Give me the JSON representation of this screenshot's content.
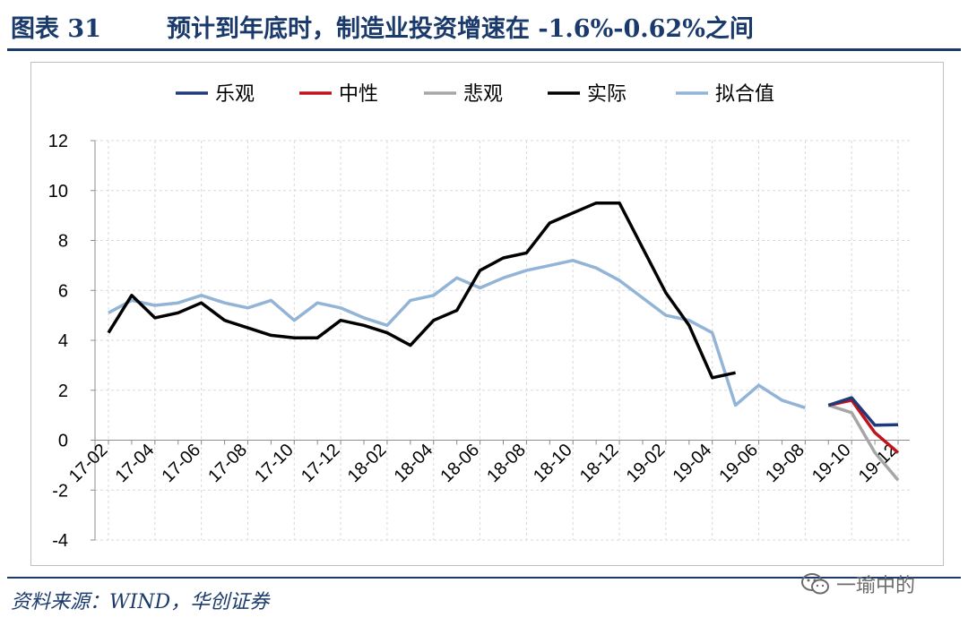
{
  "header": {
    "figure_label": "图表 31",
    "title": "预计到年底时，制造业投资增速在 -1.6%-0.62%之间"
  },
  "source": "资料来源：WIND，华创证券",
  "watermark": {
    "icon": "wechat-icon",
    "text": "一瑜中的"
  },
  "chart_data": {
    "type": "line",
    "title": "",
    "xlabel": "",
    "ylabel": "",
    "ylim": [
      -4,
      12
    ],
    "yticks": [
      -4,
      -2,
      0,
      2,
      4,
      6,
      8,
      10,
      12
    ],
    "x": [
      "17-02",
      "17-03",
      "17-04",
      "17-05",
      "17-06",
      "17-07",
      "17-08",
      "17-09",
      "17-10",
      "17-11",
      "17-12",
      "18-01",
      "18-02",
      "18-03",
      "18-04",
      "18-05",
      "18-06",
      "18-07",
      "18-08",
      "18-09",
      "18-10",
      "18-11",
      "18-12",
      "19-01",
      "19-02",
      "19-03",
      "19-04",
      "19-05",
      "19-06",
      "19-07",
      "19-08",
      "19-09",
      "19-10",
      "19-11",
      "19-12"
    ],
    "xtick_labels": [
      "17-02",
      "17-04",
      "17-06",
      "17-08",
      "17-10",
      "17-12",
      "18-02",
      "18-04",
      "18-06",
      "18-08",
      "18-10",
      "18-12",
      "19-02",
      "19-04",
      "19-06",
      "19-08",
      "19-10",
      "19-12"
    ],
    "grid": true,
    "legend": "top",
    "series": [
      {
        "name": "乐观",
        "color": "#1f3a7a",
        "values": [
          null,
          null,
          null,
          null,
          null,
          null,
          null,
          null,
          null,
          null,
          null,
          null,
          null,
          null,
          null,
          null,
          null,
          null,
          null,
          null,
          null,
          null,
          null,
          null,
          null,
          null,
          null,
          null,
          null,
          null,
          null,
          1.4,
          1.7,
          0.6,
          0.62
        ]
      },
      {
        "name": "中性",
        "color": "#c0141c",
        "values": [
          null,
          null,
          null,
          null,
          null,
          null,
          null,
          null,
          null,
          null,
          null,
          null,
          null,
          null,
          null,
          null,
          null,
          null,
          null,
          null,
          null,
          null,
          null,
          null,
          null,
          null,
          null,
          null,
          null,
          null,
          null,
          1.4,
          1.6,
          0.3,
          -0.5
        ]
      },
      {
        "name": "悲观",
        "color": "#a6a6a6",
        "values": [
          null,
          null,
          null,
          null,
          null,
          null,
          null,
          null,
          null,
          null,
          null,
          null,
          null,
          null,
          null,
          null,
          null,
          null,
          null,
          null,
          null,
          null,
          null,
          null,
          null,
          null,
          null,
          null,
          null,
          null,
          null,
          1.4,
          1.1,
          -0.5,
          -1.6
        ]
      },
      {
        "name": "实际",
        "color": "#000000",
        "values": [
          4.3,
          5.8,
          4.9,
          5.1,
          5.5,
          4.8,
          4.5,
          4.2,
          4.1,
          4.1,
          4.8,
          4.6,
          4.3,
          3.8,
          4.8,
          5.2,
          6.8,
          7.3,
          7.5,
          8.7,
          9.1,
          9.5,
          9.5,
          7.7,
          5.9,
          4.6,
          2.5,
          2.7,
          null,
          null,
          null,
          null,
          null,
          null,
          null
        ]
      },
      {
        "name": "拟合值",
        "color": "#92b4d6",
        "values": [
          5.1,
          5.6,
          5.4,
          5.5,
          5.8,
          5.5,
          5.3,
          5.6,
          4.8,
          5.5,
          5.3,
          4.9,
          4.6,
          5.6,
          5.8,
          6.5,
          6.1,
          6.5,
          6.8,
          7.0,
          7.2,
          6.9,
          6.4,
          5.7,
          5.0,
          4.8,
          4.3,
          1.4,
          2.2,
          1.6,
          1.3,
          null,
          null,
          null,
          null
        ]
      }
    ]
  }
}
